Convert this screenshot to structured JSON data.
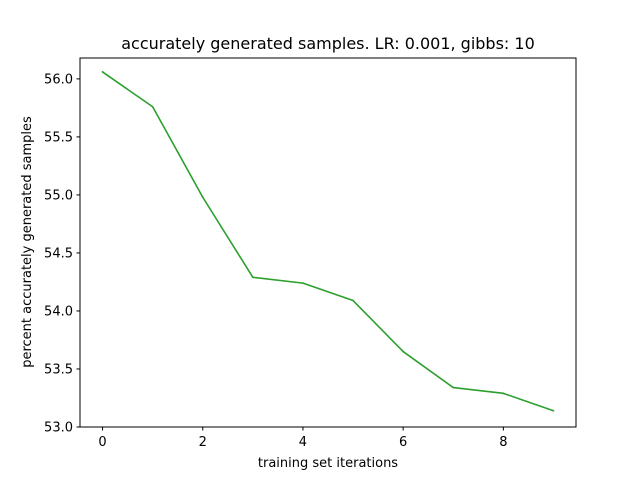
{
  "chart_data": {
    "type": "line",
    "title": "accurately generated samples. LR: 0.001, gibbs: 10",
    "xlabel": "training set iterations",
    "ylabel": "percent accurately generated samples",
    "xlim": [
      -0.45,
      9.45
    ],
    "ylim": [
      53.0,
      56.18
    ],
    "xticks": [
      0,
      2,
      4,
      6,
      8
    ],
    "xtick_labels": [
      "0",
      "2",
      "4",
      "6",
      "8"
    ],
    "yticks": [
      53.0,
      53.5,
      54.0,
      54.5,
      55.0,
      55.5,
      56.0
    ],
    "ytick_labels": [
      "53.0",
      "53.5",
      "54.0",
      "54.5",
      "55.0",
      "55.5",
      "56.0"
    ],
    "grid": false,
    "series": [
      {
        "color": "#2ca02c",
        "x": [
          0,
          1,
          2,
          3,
          4,
          5,
          6,
          7,
          8,
          9
        ],
        "y": [
          56.06,
          55.76,
          54.98,
          54.29,
          54.24,
          54.09,
          53.65,
          53.34,
          53.29,
          53.14
        ]
      }
    ]
  }
}
